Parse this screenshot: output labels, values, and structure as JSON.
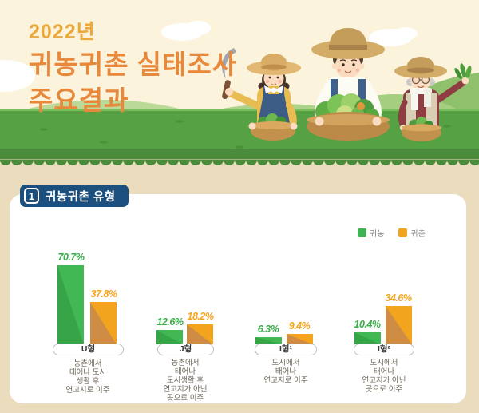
{
  "header": {
    "year": "2022년",
    "title_line1": "귀농귀촌 실태조사",
    "title_line2": "주요결과"
  },
  "section": {
    "number": "1",
    "title": "귀농귀촌 유형"
  },
  "legend": {
    "items": [
      {
        "label": "귀농",
        "color": "#3FB353"
      },
      {
        "label": "귀촌",
        "color": "#F2A41E"
      }
    ]
  },
  "chart_data": {
    "type": "bar",
    "title": "귀농귀촌 유형",
    "categories": [
      "U형",
      "J형",
      "I형¹",
      "I형²"
    ],
    "series": [
      {
        "name": "귀농",
        "color": "#3FB353",
        "values": [
          70.7,
          12.6,
          6.3,
          10.4
        ]
      },
      {
        "name": "귀촌",
        "color": "#F2A41E",
        "values": [
          37.8,
          18.2,
          9.4,
          34.6
        ]
      }
    ],
    "value_suffix": "%",
    "ylim": [
      0,
      80
    ],
    "grid": false,
    "legend_position": "top-right",
    "descriptions": [
      "농촌에서 태어나 도시 생활 후 연고지로 이주",
      "농촌에서 태어나 도시생활 후 연고지가 아닌 곳으로 이주",
      "도시에서 태어나 연고지로 이주",
      "도시에서 태어나 연고지가 아닌 곳으로 이주"
    ]
  },
  "groups": [
    {
      "desc_lines": [
        "농촌에서",
        "태어나 도시",
        "생활 후",
        "연고지로 이주"
      ]
    },
    {
      "desc_lines": [
        "농촌에서",
        "태어나",
        "도시생활 후",
        "연고지가 아닌",
        "곳으로 이주"
      ]
    },
    {
      "desc_lines": [
        "도시에서",
        "태어나",
        "연고지로 이주"
      ]
    },
    {
      "desc_lines": [
        "도시에서",
        "태어나",
        "연고지가 아닌",
        "곳으로 이주"
      ]
    }
  ],
  "colors": {
    "page_bg": "#EADCBC",
    "header_bg": "#FBF3DC",
    "card_bg": "#FFFFFF",
    "badge_navy": "#1B4F7E",
    "title_orange": "#E8883B",
    "year_orange": "#EBA93C",
    "grass": "#55A144",
    "grass_dark": "#4A8C3C",
    "green_bar": "#3FB353",
    "orange_bar": "#F2A41E",
    "green_label": "#3AAE49",
    "orange_label": "#F5A41F"
  }
}
